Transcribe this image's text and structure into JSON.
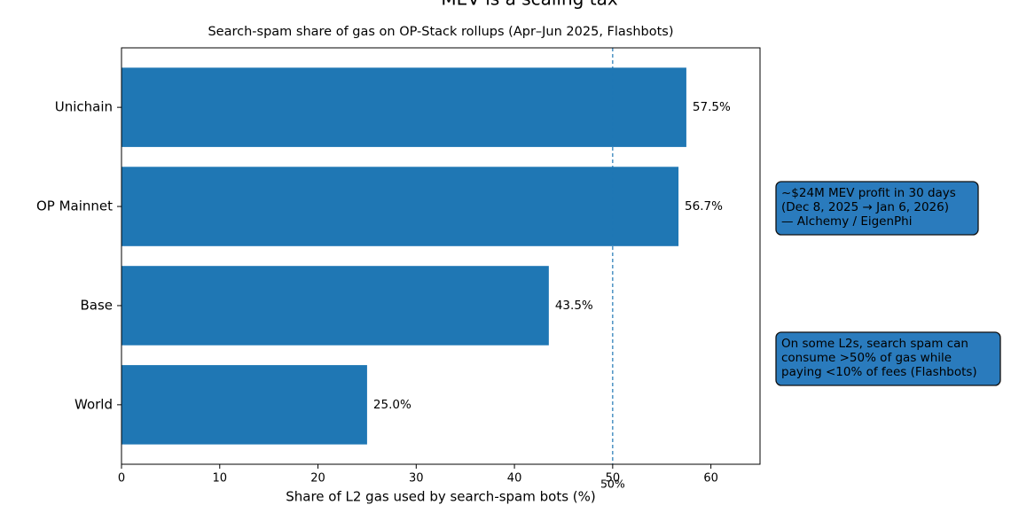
{
  "chart_data": {
    "type": "barh",
    "title": "MEV is a scaling tax",
    "subtitle": "Search-spam share of gas on OP-Stack rollups (Apr–Jun 2025, Flashbots)",
    "x_label": "Share of L2 gas used by search-spam bots (%)",
    "categories": [
      "Unichain",
      "OP Mainnet",
      "Base",
      "World"
    ],
    "values": [
      57.5,
      56.7,
      43.5,
      25.0
    ],
    "value_labels": [
      "57.5%",
      "56.7%",
      "43.5%",
      "25.0%"
    ],
    "color": "#1f77b4",
    "xlim": [
      0,
      65
    ],
    "xticks": [
      0,
      10,
      20,
      30,
      40,
      50,
      60
    ],
    "reference_line": {
      "value": 50,
      "label": "50%"
    },
    "annotations": [
      [
        "~$24M MEV profit in 30 days",
        "(Dec 8, 2025 → Jan 6, 2026)",
        "— Alchemy / EigenPhi"
      ],
      [
        "On some L2s, search spam can",
        "consume >50% of gas while",
        "paying <10% of fees (Flashbots)"
      ]
    ]
  }
}
